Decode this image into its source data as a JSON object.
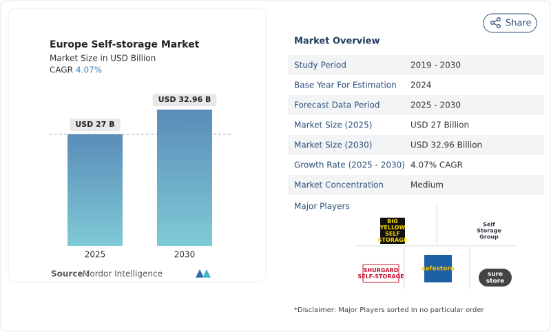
{
  "chart_data": {
    "type": "bar",
    "title": "Europe Self-storage Market",
    "subtitle": "Market Size in USD Billion",
    "cagr_label": "CAGR",
    "cagr": "4.07%",
    "categories": [
      "2025",
      "2030"
    ],
    "values": [
      27,
      32.96
    ],
    "value_labels": [
      "USD 27 B",
      "USD 32.96 B"
    ],
    "color": "#5a8cb8",
    "ylim": [
      0,
      40
    ],
    "source_label": "Source :",
    "source": "Mordor Intelligence"
  },
  "share": "Share",
  "overview": {
    "title": "Market Overview",
    "rows": [
      [
        "Study Period",
        "2019 - 2030"
      ],
      [
        "Base Year For Estimation",
        "2024"
      ],
      [
        "Forecast Data Period",
        "2025 - 2030"
      ],
      [
        "Market Size (2025)",
        "USD 27 Billion"
      ],
      [
        "Market Size (2030)",
        "USD 32.96 Billion"
      ],
      [
        "Growth Rate (2025 - 2030)",
        "4.07% CAGR"
      ],
      [
        "Market Concentration",
        "Medium"
      ]
    ],
    "players_title": "Major Players",
    "players": [
      [
        "BIG",
        "YELLOW",
        "SELF",
        "STORAGE"
      ],
      [
        "Self",
        "Storage",
        "Group"
      ],
      [
        "SHURGARD",
        "SELF-STORAGE"
      ],
      [
        "safestore"
      ],
      [
        "sure",
        "store"
      ]
    ],
    "disclaimer": "*Disclaimer: Major Players sorted in no particular order"
  }
}
